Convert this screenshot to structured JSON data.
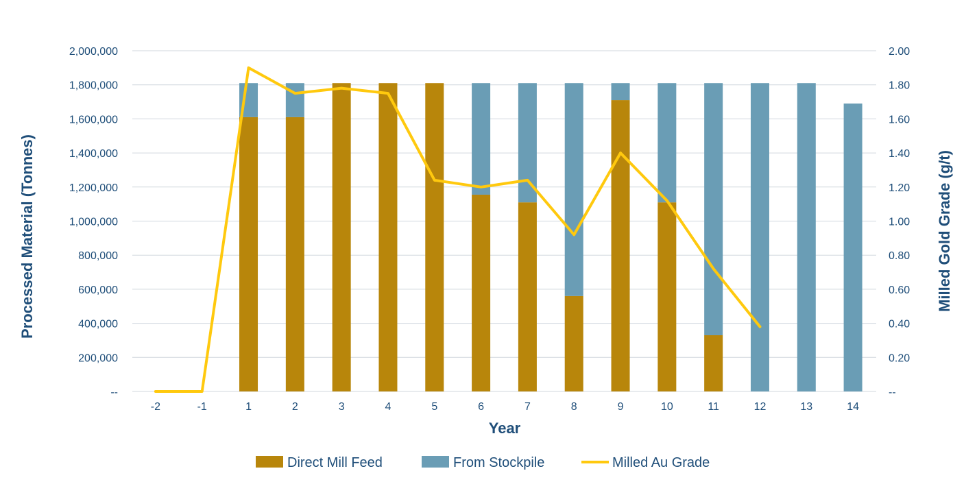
{
  "chart_data": {
    "type": "bar",
    "stacked": true,
    "categories": [
      "-2",
      "-1",
      "1",
      "2",
      "3",
      "4",
      "5",
      "6",
      "7",
      "8",
      "9",
      "10",
      "11",
      "12",
      "13",
      "14"
    ],
    "series": [
      {
        "name": "Direct Mill Feed",
        "type": "bar",
        "axis": "left",
        "color": "#b8860b",
        "values": [
          0,
          0,
          1610000,
          1610000,
          1810000,
          1810000,
          1810000,
          1155000,
          1110000,
          560000,
          1710000,
          1110000,
          330000,
          0,
          0,
          0
        ]
      },
      {
        "name": "From Stockpile",
        "type": "bar",
        "axis": "left",
        "color": "#6a9db5",
        "values": [
          0,
          0,
          200000,
          200000,
          0,
          0,
          0,
          655000,
          700000,
          1250000,
          100000,
          700000,
          1480000,
          1810000,
          1810000,
          1690000
        ]
      },
      {
        "name": "Milled Au Grade",
        "type": "line",
        "axis": "right",
        "color": "#ffc90e",
        "values": [
          0,
          0,
          1.9,
          1.75,
          1.78,
          1.75,
          1.24,
          1.2,
          1.24,
          0.92,
          1.4,
          1.12,
          0.72,
          0.38,
          null,
          null
        ]
      }
    ],
    "xlabel": "Year",
    "ylabel": "Processed Material (Tonnes)",
    "y2label": "Milled Gold Grade (g/t)",
    "ylim": [
      0,
      2000000
    ],
    "y2lim": [
      0,
      2.0
    ],
    "yticks": [
      "--",
      "200,000",
      "400,000",
      "600,000",
      "800,000",
      "1,000,000",
      "1,200,000",
      "1,400,000",
      "1,600,000",
      "1,800,000",
      "2,000,000"
    ],
    "y2ticks": [
      "--",
      "0.20",
      "0.40",
      "0.60",
      "0.80",
      "1.00",
      "1.20",
      "1.40",
      "1.60",
      "1.80",
      "2.00"
    ],
    "grid": true,
    "legend_position": "bottom"
  }
}
